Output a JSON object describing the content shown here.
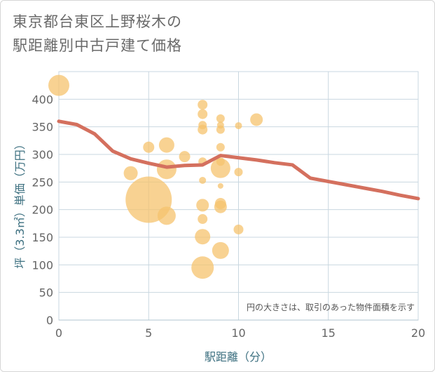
{
  "chart_data": {
    "type": "scatter",
    "title_lines": [
      "東京都台東区上野桜木の",
      "駅距離別中古戸建て価格"
    ],
    "xlabel": "駅距離（分）",
    "ylabel": "坪（3.3㎡）単価（万円）",
    "note": "円の大きさは、取引のあった物件面積を示す",
    "xlim": [
      0,
      20
    ],
    "ylim": [
      0,
      450
    ],
    "x_ticks": [
      0,
      5,
      10,
      15,
      20
    ],
    "y_ticks": [
      0,
      50,
      100,
      150,
      200,
      250,
      300,
      350,
      400
    ],
    "grid": true,
    "colors": {
      "bubble": "#f5c36e",
      "line": "#d4705e",
      "grid": "#c9d7e0",
      "axis": "#b0c4d0"
    },
    "points": [
      {
        "x": 0,
        "y": 425,
        "size": 15
      },
      {
        "x": 5,
        "y": 218,
        "size": 33
      },
      {
        "x": 5,
        "y": 313,
        "size": 8
      },
      {
        "x": 4,
        "y": 266,
        "size": 10
      },
      {
        "x": 6,
        "y": 317,
        "size": 11
      },
      {
        "x": 6,
        "y": 273,
        "size": 14
      },
      {
        "x": 6,
        "y": 189,
        "size": 13
      },
      {
        "x": 7,
        "y": 296,
        "size": 8
      },
      {
        "x": 8,
        "y": 390,
        "size": 7
      },
      {
        "x": 8,
        "y": 373,
        "size": 7
      },
      {
        "x": 8,
        "y": 353,
        "size": 6
      },
      {
        "x": 8,
        "y": 345,
        "size": 7
      },
      {
        "x": 8,
        "y": 287,
        "size": 6
      },
      {
        "x": 8,
        "y": 253,
        "size": 5
      },
      {
        "x": 8,
        "y": 208,
        "size": 9
      },
      {
        "x": 8,
        "y": 183,
        "size": 7
      },
      {
        "x": 8,
        "y": 151,
        "size": 11
      },
      {
        "x": 8,
        "y": 95,
        "size": 16
      },
      {
        "x": 9,
        "y": 365,
        "size": 6
      },
      {
        "x": 9,
        "y": 353,
        "size": 5
      },
      {
        "x": 9,
        "y": 345,
        "size": 6
      },
      {
        "x": 9,
        "y": 313,
        "size": 6
      },
      {
        "x": 9,
        "y": 287,
        "size": 6
      },
      {
        "x": 9,
        "y": 275,
        "size": 14
      },
      {
        "x": 9,
        "y": 243,
        "size": 4
      },
      {
        "x": 9,
        "y": 211,
        "size": 8
      },
      {
        "x": 9,
        "y": 205,
        "size": 9
      },
      {
        "x": 9,
        "y": 126,
        "size": 12
      },
      {
        "x": 10,
        "y": 352,
        "size": 5
      },
      {
        "x": 10,
        "y": 268,
        "size": 6
      },
      {
        "x": 10,
        "y": 164,
        "size": 7
      },
      {
        "x": 11,
        "y": 363,
        "size": 9
      }
    ],
    "trend": {
      "x": [
        0,
        1,
        2,
        3,
        4,
        5,
        6,
        7,
        8,
        9,
        10,
        11,
        12,
        13,
        14,
        15,
        16,
        17,
        18,
        19,
        20
      ],
      "y": [
        360,
        354,
        337,
        306,
        292,
        284,
        277,
        280,
        281,
        298,
        294,
        290,
        285,
        281,
        257,
        251,
        245,
        239,
        233,
        226,
        220
      ]
    }
  }
}
